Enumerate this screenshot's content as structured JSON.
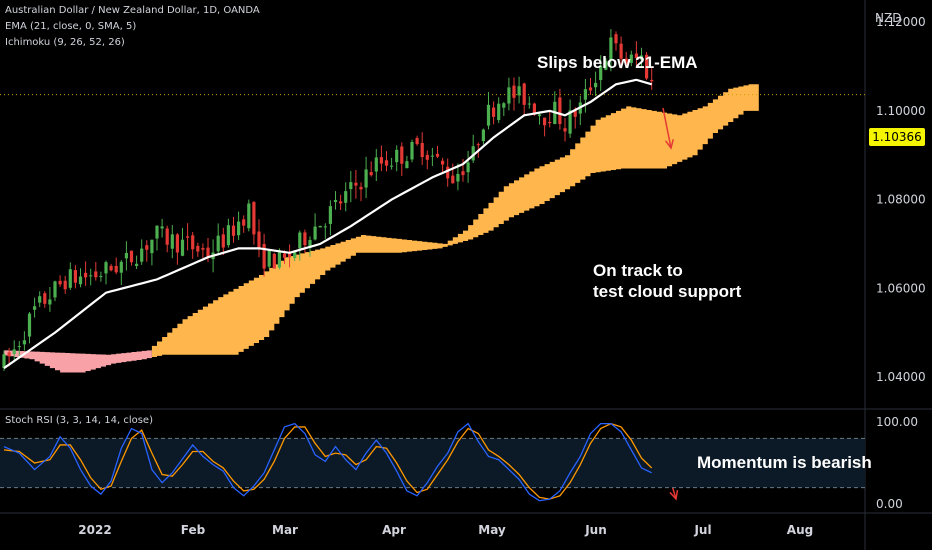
{
  "legend": {
    "title": "Australian Dollar / New Zealand Dollar, 1D, OANDA",
    "ema": "EMA (21, close, 0, SMA, 5)",
    "ichimoku": "Ichimoku (9, 26, 52, 26)",
    "stoch": "Stoch RSI (3, 3, 14, 14, close)"
  },
  "annotations": {
    "top": "Slips below 21-EMA",
    "mid_line1": "On track to",
    "mid_line2": "test cloud support",
    "bottom": "Momentum is bearish"
  },
  "colors": {
    "up_candle": "#4caf50",
    "down_candle": "#e53935",
    "ema_line": "#ffffff",
    "cloud_bull": "#ffb74d",
    "cloud_bear": "#f8a1a6",
    "stoch_k": "#2962ff",
    "stoch_d": "#ff9800",
    "arrow": "#e53935",
    "price_tag": "#f5f500"
  },
  "chart_data": [
    {
      "type": "candlestick",
      "currency": "NZD",
      "ylim": [
        1.033,
        1.125
      ],
      "yticks": [
        "1.12000",
        "1.10000",
        "1.08000",
        "1.06000",
        "1.04000"
      ],
      "ytick_values": [
        1.12,
        1.1,
        1.08,
        1.06,
        1.04
      ],
      "last_price": "1.10366",
      "x_labels": [
        "2022",
        "Feb",
        "Mar",
        "Apr",
        "May",
        "Jun",
        "Jul",
        "Aug"
      ],
      "price_anchors": [
        [
          0,
          1.043
        ],
        [
          2,
          1.046
        ],
        [
          6,
          1.055
        ],
        [
          12,
          1.062
        ],
        [
          18,
          1.063
        ],
        [
          24,
          1.066
        ],
        [
          30,
          1.072
        ],
        [
          35,
          1.07
        ],
        [
          40,
          1.068
        ],
        [
          44,
          1.072
        ],
        [
          48,
          1.078
        ],
        [
          50,
          1.067
        ],
        [
          55,
          1.066
        ],
        [
          60,
          1.073
        ],
        [
          63,
          1.076
        ],
        [
          68,
          1.082
        ],
        [
          73,
          1.088
        ],
        [
          78,
          1.09
        ],
        [
          82,
          1.092
        ],
        [
          88,
          1.085
        ],
        [
          92,
          1.09
        ],
        [
          94,
          1.098
        ],
        [
          98,
          1.104
        ],
        [
          102,
          1.103
        ],
        [
          106,
          1.099
        ],
        [
          108,
          1.1
        ],
        [
          110,
          1.097
        ],
        [
          113,
          1.101
        ],
        [
          116,
          1.108
        ],
        [
          119,
          1.115
        ],
        [
          122,
          1.111
        ],
        [
          125,
          1.112
        ],
        [
          127,
          1.106
        ]
      ],
      "ema_anchors": [
        [
          0,
          1.042
        ],
        [
          10,
          1.05
        ],
        [
          20,
          1.059
        ],
        [
          30,
          1.062
        ],
        [
          40,
          1.067
        ],
        [
          46,
          1.069
        ],
        [
          50,
          1.069
        ],
        [
          56,
          1.068
        ],
        [
          62,
          1.07
        ],
        [
          68,
          1.074
        ],
        [
          76,
          1.08
        ],
        [
          84,
          1.085
        ],
        [
          90,
          1.088
        ],
        [
          96,
          1.094
        ],
        [
          102,
          1.099
        ],
        [
          107,
          1.1
        ],
        [
          110,
          1.099
        ],
        [
          115,
          1.102
        ],
        [
          120,
          1.106
        ],
        [
          124,
          1.107
        ],
        [
          127,
          1.106
        ]
      ],
      "cloud_top_anchors": [
        [
          0,
          1.046
        ],
        [
          20,
          1.045
        ],
        [
          28,
          1.046
        ],
        [
          35,
          1.053
        ],
        [
          42,
          1.058
        ],
        [
          50,
          1.063
        ],
        [
          55,
          1.067
        ],
        [
          62,
          1.069
        ],
        [
          70,
          1.072
        ],
        [
          78,
          1.071
        ],
        [
          86,
          1.07
        ],
        [
          90,
          1.073
        ],
        [
          94,
          1.078
        ],
        [
          98,
          1.083
        ],
        [
          104,
          1.087
        ],
        [
          110,
          1.09
        ],
        [
          116,
          1.098
        ],
        [
          122,
          1.101
        ],
        [
          127,
          1.1
        ],
        [
          132,
          1.099
        ],
        [
          137,
          1.101
        ],
        [
          142,
          1.105
        ],
        [
          146,
          1.106
        ],
        [
          148,
          1.106
        ]
      ],
      "cloud_bottom_anchors": [
        [
          0,
          1.045
        ],
        [
          6,
          1.044
        ],
        [
          12,
          1.041
        ],
        [
          16,
          1.041
        ],
        [
          22,
          1.043
        ],
        [
          28,
          1.044
        ],
        [
          32,
          1.045
        ],
        [
          38,
          1.045
        ],
        [
          46,
          1.045
        ],
        [
          52,
          1.049
        ],
        [
          58,
          1.058
        ],
        [
          64,
          1.064
        ],
        [
          70,
          1.068
        ],
        [
          78,
          1.068
        ],
        [
          86,
          1.069
        ],
        [
          92,
          1.071
        ],
        [
          96,
          1.073
        ],
        [
          100,
          1.076
        ],
        [
          106,
          1.079
        ],
        [
          112,
          1.083
        ],
        [
          116,
          1.086
        ],
        [
          122,
          1.087
        ],
        [
          130,
          1.087
        ],
        [
          136,
          1.09
        ],
        [
          140,
          1.095
        ],
        [
          146,
          1.1
        ],
        [
          148,
          1.1
        ]
      ],
      "bearish_cloud_range": [
        0,
        29
      ]
    },
    {
      "type": "line",
      "name": "Stoch RSI",
      "ylim": [
        0,
        100
      ],
      "yticks": [
        "100.00",
        "0.00"
      ],
      "ytick_values": [
        100,
        0
      ],
      "bands": [
        80,
        20
      ],
      "k_anchors": [
        [
          0,
          70
        ],
        [
          3,
          62
        ],
        [
          6,
          42
        ],
        [
          9,
          58
        ],
        [
          11,
          82
        ],
        [
          13,
          68
        ],
        [
          15,
          42
        ],
        [
          17,
          22
        ],
        [
          19,
          12
        ],
        [
          21,
          28
        ],
        [
          23,
          68
        ],
        [
          25,
          92
        ],
        [
          27,
          86
        ],
        [
          29,
          42
        ],
        [
          31,
          26
        ],
        [
          33,
          38
        ],
        [
          35,
          55
        ],
        [
          37,
          72
        ],
        [
          39,
          58
        ],
        [
          41,
          48
        ],
        [
          43,
          40
        ],
        [
          45,
          20
        ],
        [
          47,
          10
        ],
        [
          49,
          22
        ],
        [
          51,
          38
        ],
        [
          53,
          66
        ],
        [
          55,
          94
        ],
        [
          57,
          98
        ],
        [
          59,
          86
        ],
        [
          61,
          60
        ],
        [
          63,
          52
        ],
        [
          65,
          70
        ],
        [
          67,
          54
        ],
        [
          69,
          42
        ],
        [
          71,
          62
        ],
        [
          73,
          78
        ],
        [
          75,
          62
        ],
        [
          77,
          40
        ],
        [
          79,
          16
        ],
        [
          81,
          10
        ],
        [
          83,
          26
        ],
        [
          85,
          46
        ],
        [
          87,
          62
        ],
        [
          89,
          88
        ],
        [
          91,
          98
        ],
        [
          93,
          76
        ],
        [
          95,
          58
        ],
        [
          97,
          54
        ],
        [
          99,
          42
        ],
        [
          101,
          30
        ],
        [
          103,
          12
        ],
        [
          105,
          4
        ],
        [
          107,
          6
        ],
        [
          109,
          16
        ],
        [
          111,
          38
        ],
        [
          113,
          58
        ],
        [
          115,
          86
        ],
        [
          117,
          98
        ],
        [
          119,
          98
        ],
        [
          121,
          88
        ],
        [
          123,
          66
        ],
        [
          125,
          44
        ],
        [
          127,
          38
        ]
      ],
      "d_anchors": [
        [
          0,
          66
        ],
        [
          3,
          64
        ],
        [
          6,
          50
        ],
        [
          9,
          54
        ],
        [
          11,
          72
        ],
        [
          13,
          72
        ],
        [
          15,
          54
        ],
        [
          17,
          32
        ],
        [
          19,
          18
        ],
        [
          21,
          22
        ],
        [
          23,
          52
        ],
        [
          25,
          80
        ],
        [
          27,
          90
        ],
        [
          29,
          62
        ],
        [
          31,
          36
        ],
        [
          33,
          34
        ],
        [
          35,
          48
        ],
        [
          37,
          64
        ],
        [
          39,
          64
        ],
        [
          41,
          52
        ],
        [
          43,
          44
        ],
        [
          45,
          28
        ],
        [
          47,
          16
        ],
        [
          49,
          18
        ],
        [
          51,
          30
        ],
        [
          53,
          52
        ],
        [
          55,
          80
        ],
        [
          57,
          94
        ],
        [
          59,
          94
        ],
        [
          61,
          74
        ],
        [
          63,
          58
        ],
        [
          65,
          62
        ],
        [
          67,
          60
        ],
        [
          69,
          48
        ],
        [
          71,
          54
        ],
        [
          73,
          70
        ],
        [
          75,
          68
        ],
        [
          77,
          50
        ],
        [
          79,
          28
        ],
        [
          81,
          14
        ],
        [
          83,
          18
        ],
        [
          85,
          36
        ],
        [
          87,
          54
        ],
        [
          89,
          76
        ],
        [
          91,
          92
        ],
        [
          93,
          86
        ],
        [
          95,
          66
        ],
        [
          97,
          58
        ],
        [
          99,
          48
        ],
        [
          101,
          36
        ],
        [
          103,
          20
        ],
        [
          105,
          8
        ],
        [
          107,
          6
        ],
        [
          109,
          10
        ],
        [
          111,
          26
        ],
        [
          113,
          48
        ],
        [
          115,
          74
        ],
        [
          117,
          92
        ],
        [
          119,
          98
        ],
        [
          121,
          94
        ],
        [
          123,
          78
        ],
        [
          125,
          56
        ],
        [
          127,
          44
        ]
      ]
    }
  ]
}
